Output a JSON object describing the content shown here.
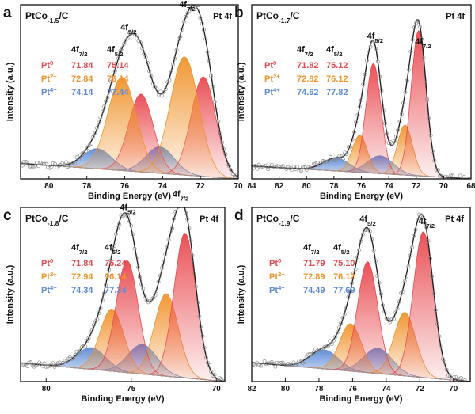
{
  "figure": {
    "x_label": "Binding Energy (eV)",
    "y_label": "Intensity (a.u.)"
  },
  "colors": {
    "pt0": "#e8484e",
    "pt2": "#f0922a",
    "pt4": "#5b8ad6",
    "fit": "#222222",
    "raw": "#8a8a8a",
    "background": "#9a9a9a"
  },
  "chart_data": [
    {
      "type": "line",
      "panel_label": "a",
      "sample_prefix": "PtCo",
      "sample_sub": "-1.5",
      "sample_suffix": "/C",
      "region": "Pt 4f",
      "xlabel": "Binding Energy (eV)",
      "ylabel": "Intensity (a.u.)",
      "xlim": [
        81.5,
        70
      ],
      "xticks": [
        80,
        78,
        76,
        74,
        72,
        70
      ],
      "ylim": [
        0,
        1.12
      ],
      "peak_labels": [
        {
          "x": 75.8,
          "base": "4f",
          "sub": "5/2"
        },
        {
          "x": 72.7,
          "base": "4f",
          "sub": "7/2"
        }
      ],
      "table_headers": [
        {
          "base": "4f",
          "sub": "7/2"
        },
        {
          "base": "4f",
          "sub": "5/2"
        }
      ],
      "species": [
        {
          "key": "pt0",
          "base": "Pt",
          "sup": "0",
          "values": [
            "71.84",
            "75.14"
          ],
          "centers": [
            71.84,
            75.14
          ],
          "heights": [
            0.64,
            0.5
          ],
          "width": 0.65
        },
        {
          "key": "pt2",
          "base": "Pt",
          "sup": "2+",
          "values": [
            "72.84",
            "76.14"
          ],
          "centers": [
            72.84,
            76.14
          ],
          "heights": [
            0.76,
            0.6
          ],
          "width": 0.75
        },
        {
          "key": "pt4",
          "base": "Pt",
          "sup": "4+",
          "values": [
            "74.14",
            "77.44"
          ],
          "centers": [
            74.14,
            77.44
          ],
          "heights": [
            0.17,
            0.13
          ],
          "width": 0.75
        }
      ],
      "background": {
        "start": 0.1,
        "end": 0.0
      }
    },
    {
      "type": "line",
      "panel_label": "b",
      "sample_prefix": "PtCo",
      "sample_sub": "-1.7",
      "sample_suffix": "/C",
      "region": "Pt 4f",
      "xlabel": "Binding Energy (eV)",
      "ylabel": "Intensity (a.u.)",
      "xlim": [
        84,
        68
      ],
      "xticks": [
        84,
        82,
        80,
        78,
        76,
        74,
        72,
        70,
        68
      ],
      "ylim": [
        0,
        1.08
      ],
      "peak_labels": [
        {
          "x": 75.0,
          "base": "4f",
          "sub": "5/2"
        },
        {
          "x": 71.5,
          "base": "4f",
          "sub": "7/2"
        }
      ],
      "table_headers": [
        {
          "base": "4f",
          "sub": "7/2"
        },
        {
          "base": "4f",
          "sub": "5/2"
        }
      ],
      "species": [
        {
          "key": "pt0",
          "base": "Pt",
          "sup": "0",
          "values": [
            "71.82",
            "75.12"
          ],
          "centers": [
            71.82,
            75.12
          ],
          "heights": [
            0.9,
            0.68
          ],
          "width": 0.55
        },
        {
          "key": "pt2",
          "base": "Pt",
          "sup": "2+",
          "values": [
            "72.82",
            "76.12"
          ],
          "centers": [
            72.82,
            76.12
          ],
          "heights": [
            0.31,
            0.23
          ],
          "width": 0.55
        },
        {
          "key": "pt4",
          "base": "Pt",
          "sup": "4+",
          "values": [
            "74.62",
            "77.82"
          ],
          "centers": [
            74.62,
            77.82
          ],
          "heights": [
            0.11,
            0.08
          ],
          "width": 0.95
        }
      ],
      "background": {
        "start": 0.08,
        "end": 0.0
      }
    },
    {
      "type": "line",
      "panel_label": "c",
      "sample_prefix": "PtCo",
      "sample_sub": "-1.8",
      "sample_suffix": "/C",
      "region": "Pt 4f",
      "xlabel": "Binding Energy (eV)",
      "ylabel": "Intensity (a.u.)",
      "xlim": [
        81.5,
        69.5
      ],
      "xticks": [
        80,
        75,
        70
      ],
      "ylim": [
        0,
        1.12
      ],
      "peak_labels": [
        {
          "x": 75.2,
          "base": "4f",
          "sub": "5/2"
        },
        {
          "x": 72.1,
          "base": "4f",
          "sub": "7/2"
        }
      ],
      "table_headers": [
        {
          "base": "4f",
          "sub": "7/2"
        },
        {
          "base": "4f",
          "sub": "5/2"
        }
      ],
      "species": [
        {
          "key": "pt0",
          "base": "Pt",
          "sup": "0",
          "values": [
            "71.84",
            "75.24"
          ],
          "centers": [
            71.84,
            75.24
          ],
          "heights": [
            0.93,
            0.72
          ],
          "width": 0.65
        },
        {
          "key": "pt2",
          "base": "Pt",
          "sup": "2+",
          "values": [
            "72.94",
            "76.14"
          ],
          "centers": [
            72.94,
            76.14
          ],
          "heights": [
            0.53,
            0.4
          ],
          "width": 0.7
        },
        {
          "key": "pt4",
          "base": "Pt",
          "sup": "4+",
          "values": [
            "74.34",
            "77.34"
          ],
          "centers": [
            74.34,
            77.34
          ],
          "heights": [
            0.19,
            0.14
          ],
          "width": 0.85
        }
      ],
      "background": {
        "start": 0.12,
        "end": 0.0
      }
    },
    {
      "type": "line",
      "panel_label": "d",
      "sample_prefix": "PtCo",
      "sample_sub": "-1.9",
      "sample_suffix": "/C",
      "region": "Pt 4f",
      "xlabel": "Binding Energy (eV)",
      "ylabel": "Intensity (a.u.)",
      "xlim": [
        82,
        69
      ],
      "xticks": [
        82,
        80,
        78,
        76,
        74,
        72,
        70
      ],
      "ylim": [
        0,
        1.1
      ],
      "peak_labels": [
        {
          "x": 75.1,
          "base": "4f",
          "sub": "5/2"
        },
        {
          "x": 71.6,
          "base": "4f",
          "sub": "7/2"
        }
      ],
      "table_headers": [
        {
          "base": "4f",
          "sub": "7/2"
        },
        {
          "base": "4f",
          "sub": "5/2"
        }
      ],
      "species": [
        {
          "key": "pt0",
          "base": "Pt",
          "sup": "0",
          "values": [
            "71.79",
            "75.10"
          ],
          "centers": [
            71.79,
            75.1
          ],
          "heights": [
            0.92,
            0.7
          ],
          "width": 0.6
        },
        {
          "key": "pt2",
          "base": "Pt",
          "sup": "2+",
          "values": [
            "72.89",
            "76.12"
          ],
          "centers": [
            72.89,
            76.12
          ],
          "heights": [
            0.4,
            0.3
          ],
          "width": 0.65
        },
        {
          "key": "pt4",
          "base": "Pt",
          "sup": "4+",
          "values": [
            "74.49",
            "77.69"
          ],
          "centers": [
            74.49,
            77.69
          ],
          "heights": [
            0.16,
            0.12
          ],
          "width": 0.85
        }
      ],
      "background": {
        "start": 0.12,
        "end": 0.0
      }
    }
  ]
}
